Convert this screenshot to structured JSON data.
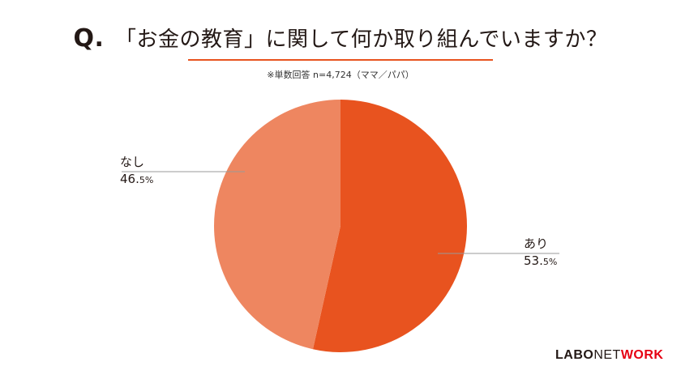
{
  "title": {
    "prefix": "Q.",
    "text": "「お金の教育」に関して何か取り組んでいますか？"
  },
  "note": "※単数回答 n=4,724（ママ／パパ）",
  "colors": {
    "accent": "#e8531f",
    "slice_yes": "#e8531f",
    "slice_no": "#ee8660",
    "rule": "#e8531f",
    "leader": "#999999"
  },
  "chart_data": {
    "type": "pie",
    "categories": [
      "あり",
      "なし"
    ],
    "values": [
      53.5,
      46.5
    ],
    "unit": "%",
    "labels": [
      {
        "name": "あり",
        "int": "53.",
        "dec": "5%"
      },
      {
        "name": "なし",
        "int": "46.",
        "dec": "5%"
      }
    ],
    "start": "12 o'clock",
    "direction": "clockwise"
  },
  "logo": {
    "part1": "LABO",
    "part2": "NET",
    "part3": "WORK"
  }
}
